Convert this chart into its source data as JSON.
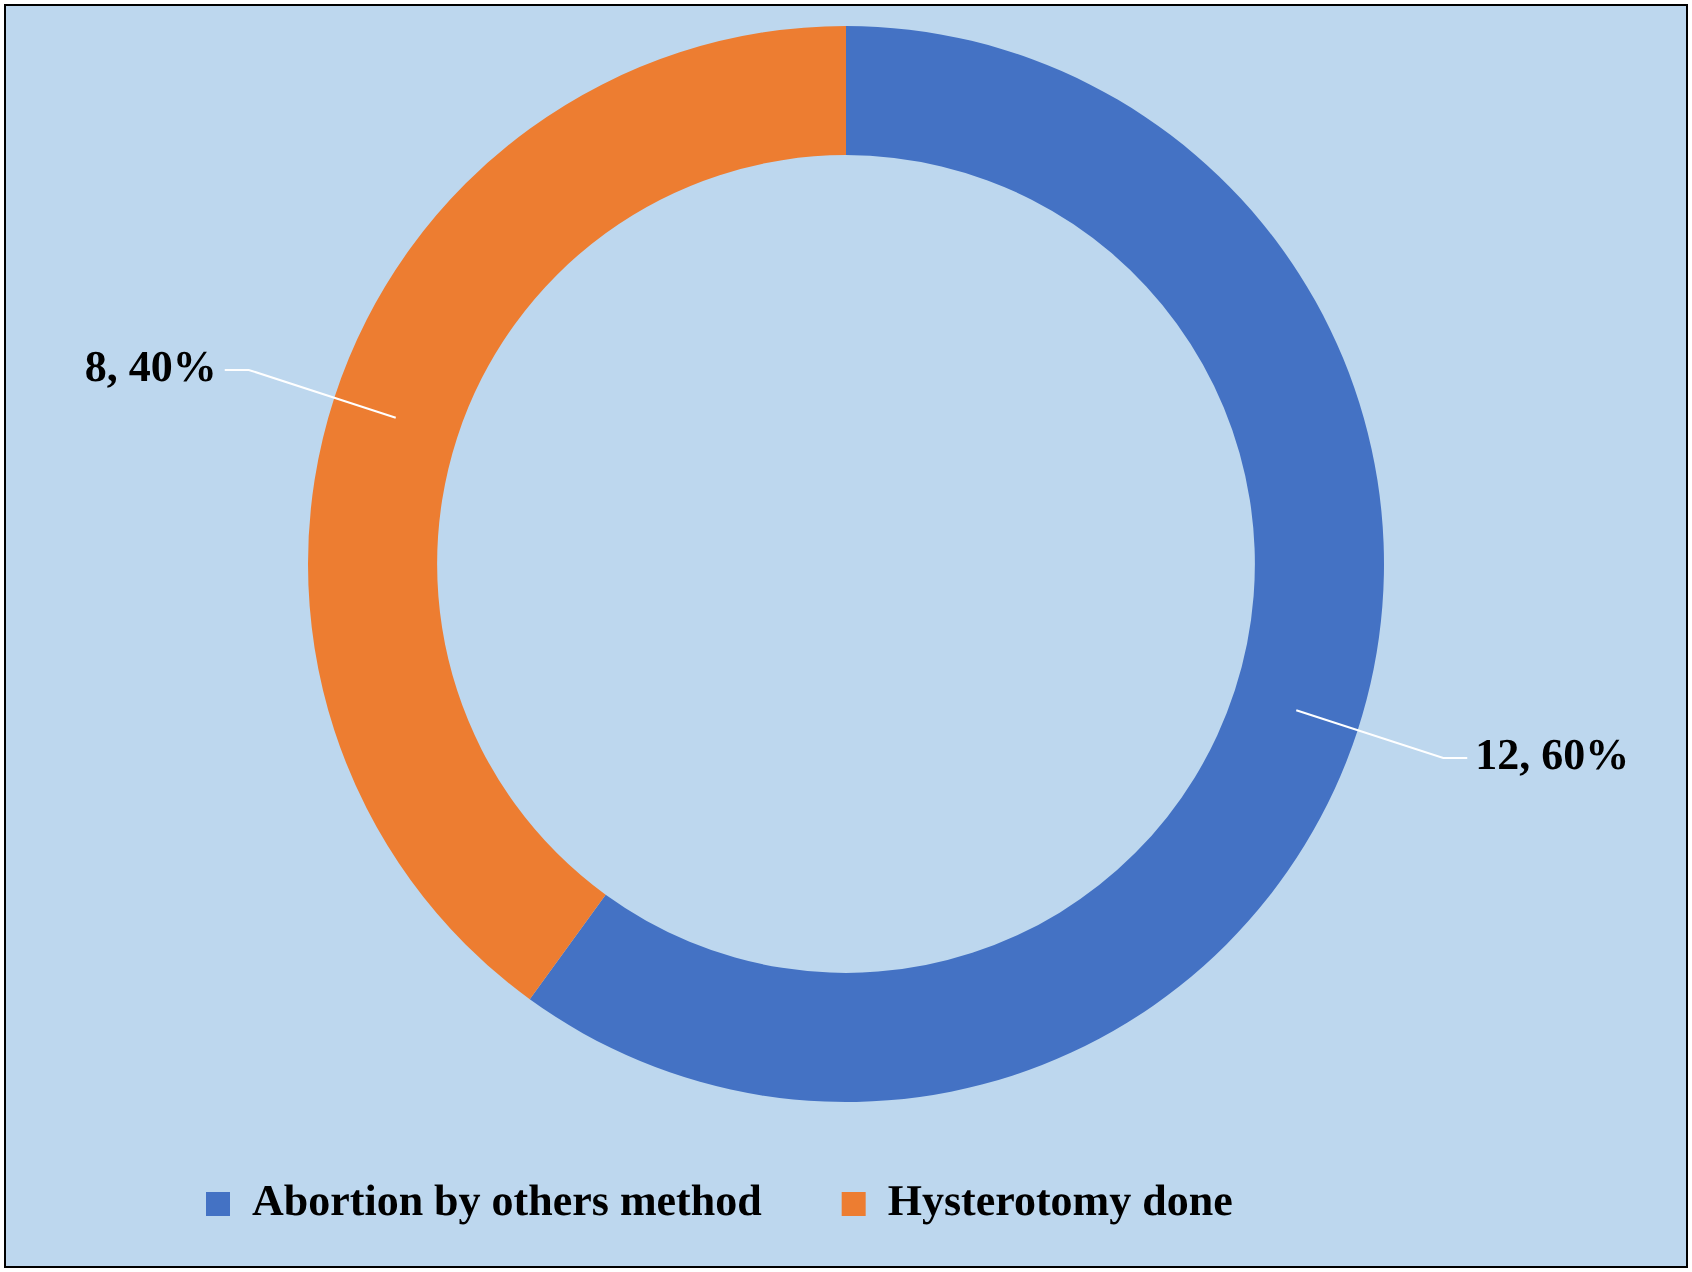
{
  "chart_data": {
    "type": "donut",
    "categories": [
      "Abortion by others method",
      "Hysterotomy done"
    ],
    "values": [
      12,
      8
    ],
    "colors": [
      "#4472c4",
      "#ed7d31"
    ],
    "value_labels": [
      "12, 60%",
      "8, 40%"
    ],
    "legend": "bottom left"
  }
}
